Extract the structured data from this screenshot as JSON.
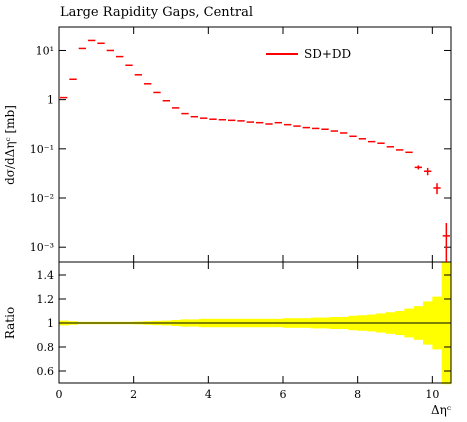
{
  "chart_data": {
    "type": "errorbar",
    "title": "Large Rapidity Gaps, Central",
    "y_label": "dσ/dΔηᶜ [mb]",
    "x_label": "Δηᶜ",
    "ratio_label": "Ratio",
    "legend": "upper right",
    "x": [
      0.125,
      0.375,
      0.625,
      0.875,
      1.125,
      1.375,
      1.625,
      1.875,
      2.125,
      2.375,
      2.625,
      2.875,
      3.125,
      3.375,
      3.625,
      3.875,
      4.125,
      4.375,
      4.625,
      4.875,
      5.125,
      5.375,
      5.625,
      5.875,
      6.125,
      6.375,
      6.625,
      6.875,
      7.125,
      7.375,
      7.625,
      7.875,
      8.125,
      8.375,
      8.625,
      8.875,
      9.125,
      9.375,
      9.625,
      9.875,
      10.125,
      10.375
    ],
    "bin_width": 0.25,
    "series": [
      {
        "name": "SD+DD",
        "color": "#ff0000",
        "values": [
          1.1,
          2.6,
          11,
          16,
          14,
          10,
          7.5,
          5,
          3.2,
          2.1,
          1.4,
          0.95,
          0.68,
          0.52,
          0.45,
          0.42,
          0.4,
          0.39,
          0.38,
          0.37,
          0.35,
          0.34,
          0.32,
          0.34,
          0.31,
          0.29,
          0.27,
          0.26,
          0.25,
          0.23,
          0.21,
          0.18,
          0.16,
          0.14,
          0.13,
          0.11,
          0.095,
          0.085,
          0.042,
          0.035,
          0.016,
          0.0017
        ],
        "errors": [
          0,
          0,
          0,
          0,
          0,
          0,
          0,
          0,
          0,
          0,
          0,
          0,
          0,
          0,
          0,
          0,
          0,
          0,
          0,
          0,
          0,
          0,
          0,
          0,
          0,
          0,
          0,
          0,
          0,
          0,
          0,
          0,
          0,
          0,
          0,
          0,
          0,
          0,
          0.004,
          0.006,
          0.004,
          0.0014
        ],
        "ratio_errors": [
          0.02,
          0.015,
          0.01,
          0.01,
          0.01,
          0.01,
          0.01,
          0.01,
          0.012,
          0.015,
          0.018,
          0.02,
          0.025,
          0.03,
          0.03,
          0.035,
          0.035,
          0.035,
          0.035,
          0.035,
          0.035,
          0.035,
          0.035,
          0.035,
          0.04,
          0.04,
          0.04,
          0.045,
          0.045,
          0.05,
          0.05,
          0.06,
          0.065,
          0.07,
          0.08,
          0.09,
          0.1,
          0.12,
          0.14,
          0.18,
          0.22,
          0.51
        ]
      }
    ],
    "xlim": [
      0,
      10.5
    ],
    "xticks": [
      0,
      2,
      4,
      6,
      8,
      10
    ],
    "ylim": [
      0.0005,
      30
    ],
    "log_y": true,
    "yticks": [
      {
        "value": 0.001,
        "label": "10⁻³"
      },
      {
        "value": 0.01,
        "label": "10⁻²"
      },
      {
        "value": 0.1,
        "label": "10⁻¹"
      },
      1,
      {
        "value": 10,
        "label": "10¹"
      }
    ],
    "ratio_ylim": [
      0.5,
      1.5
    ],
    "ratio_yticks": [
      0.6,
      0.8,
      1,
      1.2,
      1.4
    ],
    "band_color": "#ffff00"
  }
}
